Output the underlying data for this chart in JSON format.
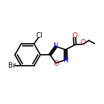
{
  "bg": "#ffffff",
  "bc": "#000000",
  "lw": 1.3,
  "fs": 7.2,
  "xlim": [
    0.0,
    1.0
  ],
  "ylim": [
    0.25,
    0.85
  ]
}
